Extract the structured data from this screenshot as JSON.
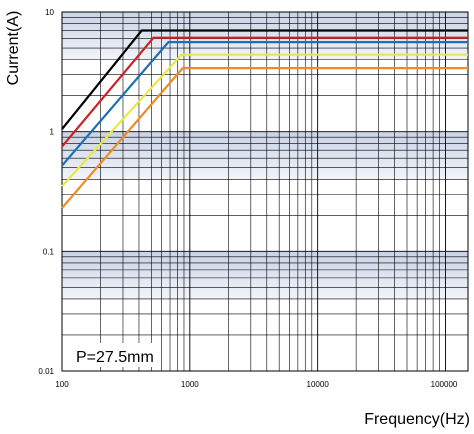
{
  "chart_data": {
    "type": "line",
    "title": "",
    "xlabel": "Frequency(Hz)",
    "ylabel": "Current(A)",
    "x_scale": "log",
    "y_scale": "log",
    "xlim": [
      100,
      150000
    ],
    "ylim": [
      0.01,
      10
    ],
    "grid": true,
    "x_ticks": [
      "100",
      "1000",
      "10000",
      "100000"
    ],
    "y_ticks": [
      "10",
      "1",
      "0.1",
      "0.01"
    ],
    "annotation": "P=27.5mm",
    "series": [
      {
        "color": "#000000",
        "x": [
          100,
          420,
          150000
        ],
        "y": [
          1.05,
          7.0,
          7.0
        ]
      },
      {
        "color": "#cc2222",
        "x": [
          100,
          520,
          150000
        ],
        "y": [
          0.75,
          6.1,
          6.1
        ]
      },
      {
        "color": "#1f6fb5",
        "x": [
          100,
          680,
          150000
        ],
        "y": [
          0.52,
          5.6,
          5.6
        ]
      },
      {
        "color": "#e8e84a",
        "x": [
          100,
          860,
          150000
        ],
        "y": [
          0.35,
          4.4,
          4.4
        ]
      },
      {
        "color": "#f08a24",
        "x": [
          100,
          880,
          150000
        ],
        "y": [
          0.23,
          3.4,
          3.4
        ]
      }
    ],
    "band_color": "#c9d3e6",
    "grid_color": "#000000"
  }
}
